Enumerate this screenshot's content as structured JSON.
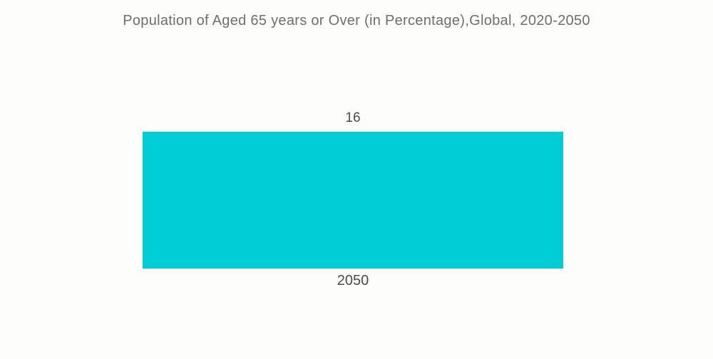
{
  "page": {
    "background_color": "#fdfdfc"
  },
  "chart_data": {
    "type": "bar",
    "title": "Population of Aged 65 years or Over (in Percentage),Global, 2020-2050",
    "categories": [
      "2050"
    ],
    "values": [
      16
    ],
    "value_labels": [
      "16"
    ],
    "xlabel": "",
    "ylabel": "",
    "ylim": [
      0,
      20
    ],
    "grid": false,
    "legend": false,
    "bar_color": "#00ccd3",
    "title_color": "#6f6f6f",
    "label_color": "#4b4b4b"
  }
}
